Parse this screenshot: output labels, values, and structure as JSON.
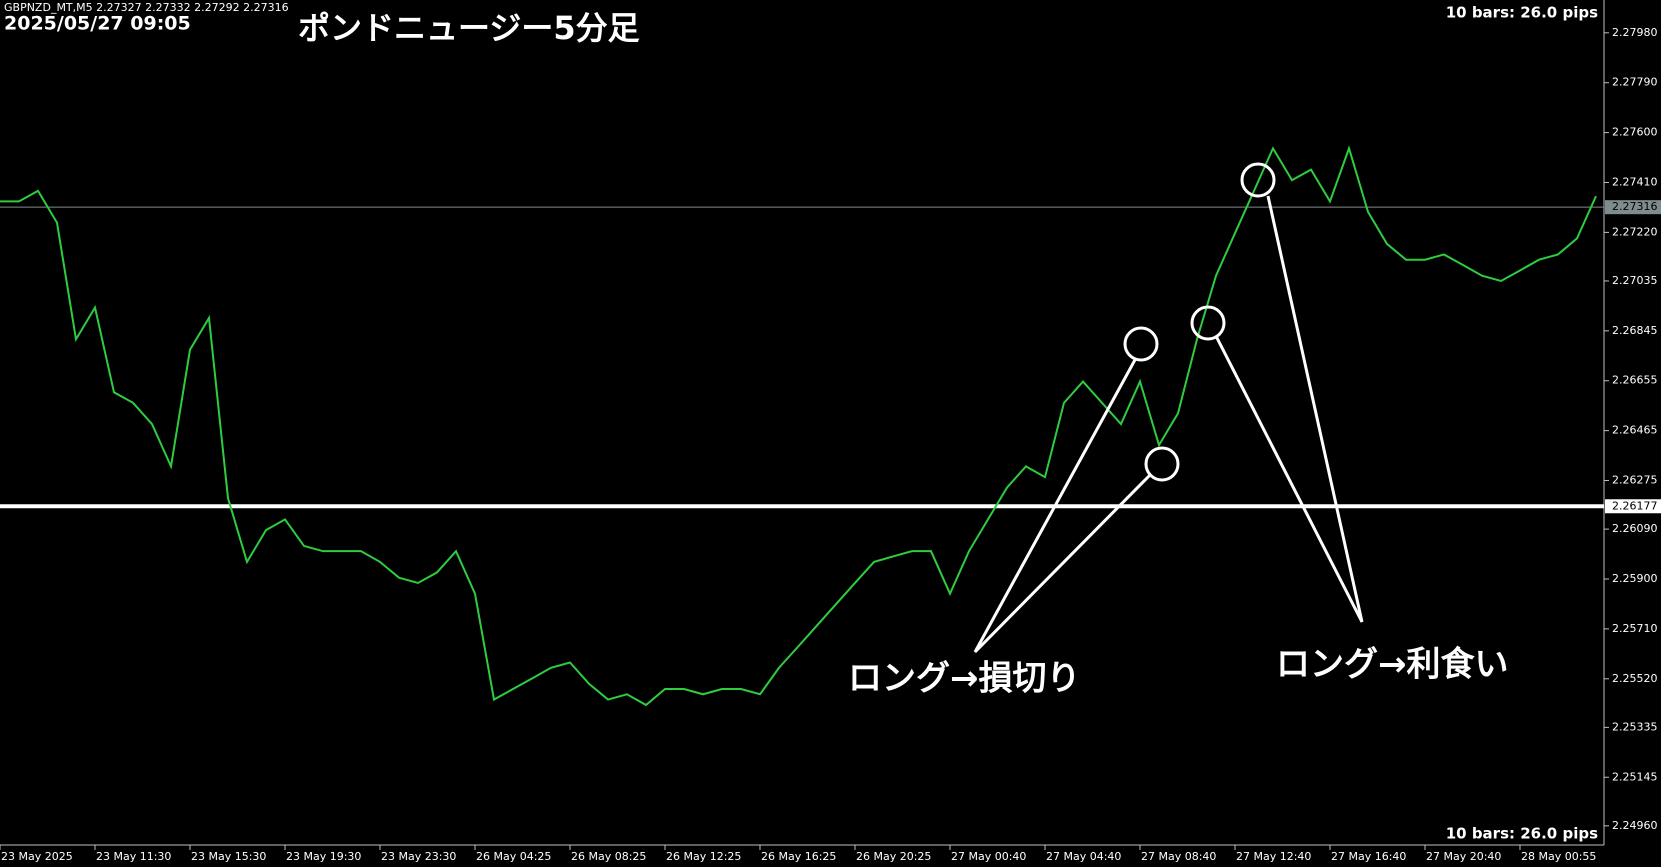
{
  "chart_data": {
    "type": "line",
    "header": "GBPNZD_MT,M5  2.27327 2.27332 2.27292 2.27316",
    "datetime": "2025/05/27 09:05",
    "title": "ポンドニュージー5分足",
    "info_top": "10 bars: 26.0 pips",
    "info_bottom": "10 bars: 26.0 pips",
    "annotations": [
      "ロング→損切り",
      "ロング→利食い"
    ],
    "categories": [
      "23 May 2025",
      null,
      null,
      null,
      null,
      "23 May 11:30",
      null,
      null,
      null,
      null,
      "23 May 15:30",
      null,
      null,
      null,
      null,
      "23 May 19:30",
      null,
      null,
      null,
      null,
      "23 May 23:30",
      null,
      null,
      null,
      null,
      "26 May 04:25",
      null,
      null,
      null,
      null,
      "26 May 08:25",
      null,
      null,
      null,
      null,
      "26 May 12:25",
      null,
      null,
      null,
      null,
      "26 May 16:25",
      null,
      null,
      null,
      null,
      "26 May 20:25",
      null,
      null,
      null,
      null,
      "27 May 00:40",
      null,
      null,
      null,
      null,
      "27 May 04:40",
      null,
      null,
      null,
      null,
      "27 May 08:40",
      null,
      null,
      null,
      null,
      "27 May 12:40",
      null,
      null,
      null,
      null,
      "27 May 16:40",
      null,
      null,
      null,
      null,
      "27 May 20:40",
      null,
      null,
      null,
      null,
      "28 May 00:55",
      null,
      null,
      null,
      null
    ],
    "series": [
      {
        "color": "#2ecc40",
        "values": [
          2.27338,
          2.27338,
          2.27378,
          2.27257,
          2.26813,
          2.26934,
          2.26611,
          2.26571,
          2.2649,
          2.26329,
          2.26773,
          2.26894,
          2.26208,
          2.25965,
          2.26086,
          2.26127,
          2.26026,
          2.26006,
          2.26006,
          2.26006,
          2.25965,
          2.25905,
          2.25885,
          2.25925,
          2.26006,
          2.25844,
          2.25441,
          2.25481,
          2.25521,
          2.25562,
          2.25582,
          2.25501,
          2.25441,
          2.25461,
          2.2542,
          2.25481,
          2.25481,
          2.25461,
          2.25481,
          2.25481,
          2.25461,
          2.25562,
          2.25642,
          2.25723,
          2.25804,
          2.25885,
          2.25965,
          2.25986,
          2.26006,
          2.26006,
          2.25844,
          2.26006,
          2.26127,
          2.26248,
          2.26329,
          2.26288,
          2.26571,
          2.26652,
          2.26571,
          2.2649,
          2.26652,
          2.2641,
          2.26531,
          2.26813,
          2.27055,
          2.27217,
          2.27378,
          2.2754,
          2.27419,
          2.27459,
          2.27338,
          2.2754,
          2.27298,
          2.27176,
          2.27116,
          2.27116,
          2.27136,
          2.27096,
          2.27055,
          2.27035,
          2.27075,
          2.27116,
          2.27136,
          2.27197,
          2.27358
        ]
      }
    ],
    "hlines": [
      {
        "value": 2.27316,
        "label": "2.27316",
        "color": "#7f8c8d"
      },
      {
        "value": 2.26177,
        "label": "2.26177",
        "color": "#ffffff"
      }
    ],
    "ylim": [
      2.24887,
      2.28105
    ],
    "yticks": [
      {
        "value": 2.2798,
        "label": "2.27980"
      },
      {
        "value": 2.2779,
        "label": "2.27790"
      },
      {
        "value": 2.276,
        "label": "2.27600"
      },
      {
        "value": 2.2741,
        "label": "2.27410"
      },
      {
        "value": 2.2722,
        "label": "2.27220"
      },
      {
        "value": 2.27035,
        "label": "2.27035"
      },
      {
        "value": 2.26845,
        "label": "2.26845"
      },
      {
        "value": 2.26655,
        "label": "2.26655"
      },
      {
        "value": 2.26465,
        "label": "2.26465"
      },
      {
        "value": 2.26275,
        "label": "2.26275"
      },
      {
        "value": 2.2609,
        "label": "2.26090"
      },
      {
        "value": 2.259,
        "label": "2.25900"
      },
      {
        "value": 2.2571,
        "label": "2.25710"
      },
      {
        "value": 2.2552,
        "label": "2.25520"
      },
      {
        "value": 2.25335,
        "label": "2.25335"
      },
      {
        "value": 2.25145,
        "label": "2.25145"
      },
      {
        "value": 2.2496,
        "label": "2.24960"
      }
    ]
  }
}
